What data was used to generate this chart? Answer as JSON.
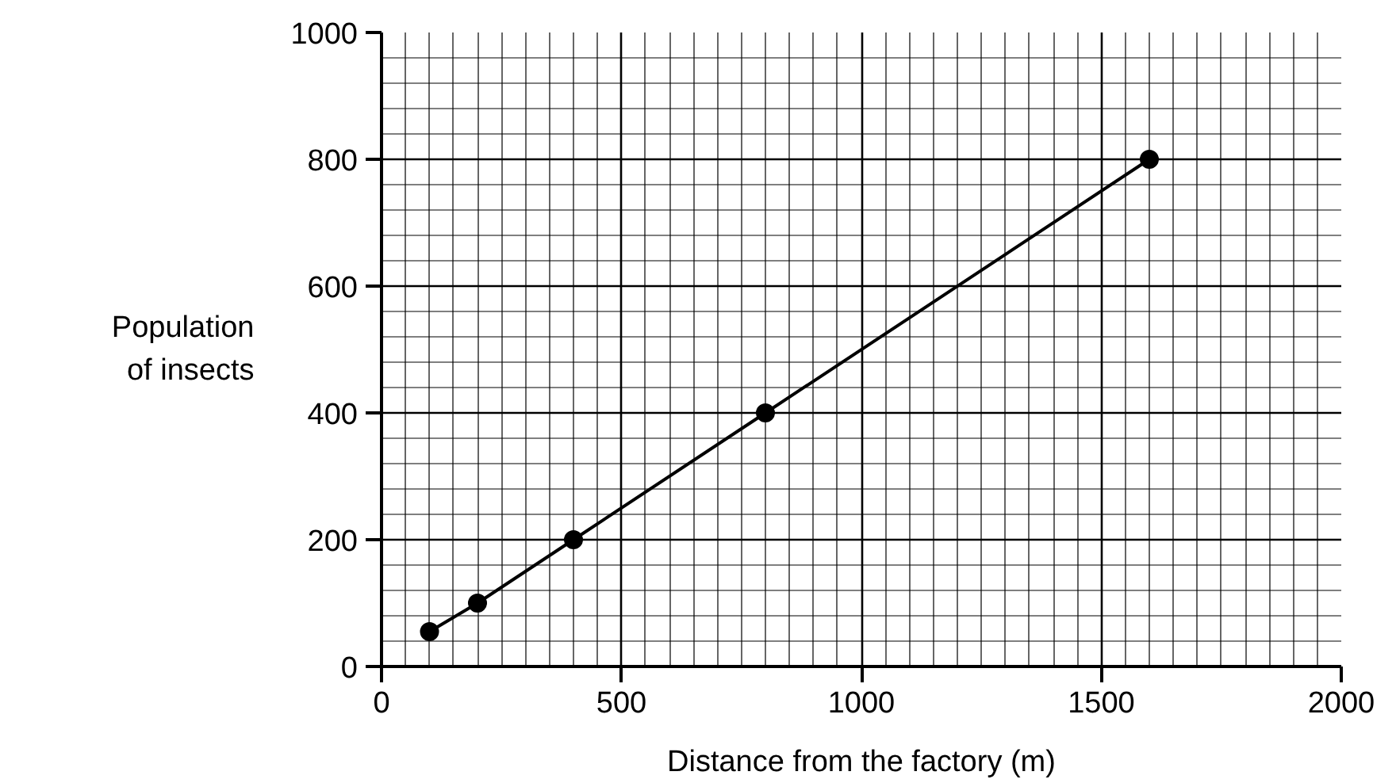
{
  "chart_data": {
    "type": "line",
    "xlabel": "Distance from the factory (m)",
    "ylabel": "Population of insects",
    "x": [
      100,
      200,
      400,
      800,
      1600
    ],
    "values": [
      55,
      100,
      200,
      400,
      800
    ],
    "color": "#000000",
    "marker": "circle",
    "line_style": "solid",
    "grid": true,
    "xlim": [
      0,
      2000
    ],
    "xticks": [
      0,
      500,
      1000,
      1500,
      2000
    ],
    "ylim": [
      0,
      1000
    ],
    "yticks": [
      0,
      200,
      400,
      600,
      800,
      1000
    ]
  }
}
